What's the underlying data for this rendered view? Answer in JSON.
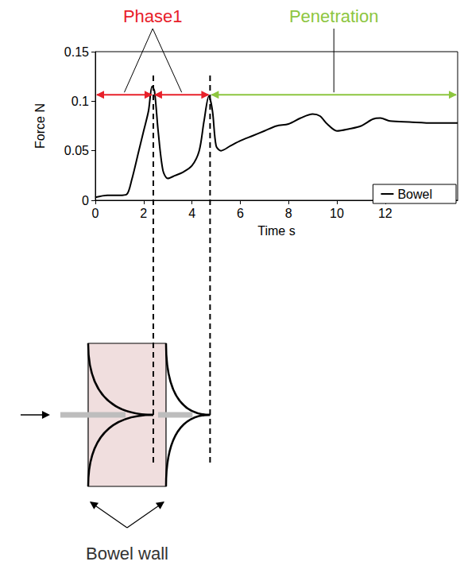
{
  "chart_data": {
    "type": "line",
    "x_label": "Time s",
    "y_label": "Force N",
    "xlim": [
      0,
      15
    ],
    "xticks": [
      0,
      2,
      4,
      6,
      8,
      10,
      12
    ],
    "ylim": [
      0,
      0.15
    ],
    "yticks": [
      0,
      0.05,
      0.1,
      0.15
    ],
    "grid": false,
    "legend": "lower right",
    "x": [
      0,
      0.5,
      1.0,
      1.3,
      1.5,
      1.8,
      2.0,
      2.2,
      2.35,
      2.45,
      2.6,
      2.8,
      3.0,
      3.3,
      3.6,
      4.0,
      4.3,
      4.5,
      4.7,
      4.85,
      5.0,
      5.2,
      5.6,
      6.0,
      6.5,
      7.0,
      7.5,
      8.0,
      8.5,
      9.0,
      9.3,
      9.6,
      10.0,
      10.5,
      11.0,
      11.5,
      11.8,
      12.2,
      13.0,
      14.0,
      15.0
    ],
    "series": [
      {
        "name": "Bowel",
        "color": "#000000",
        "values": [
          0.003,
          0.005,
          0.005,
          0.006,
          0.02,
          0.05,
          0.07,
          0.09,
          0.115,
          0.11,
          0.07,
          0.03,
          0.022,
          0.025,
          0.028,
          0.035,
          0.05,
          0.08,
          0.105,
          0.09,
          0.055,
          0.05,
          0.055,
          0.06,
          0.065,
          0.07,
          0.075,
          0.077,
          0.083,
          0.087,
          0.085,
          0.077,
          0.07,
          0.072,
          0.075,
          0.082,
          0.083,
          0.08,
          0.079,
          0.078,
          0.078
        ]
      }
    ],
    "phases": [
      {
        "label": "Phase1",
        "color": "#e8202a",
        "start": 0,
        "end": 4.75
      },
      {
        "label": "Penetration",
        "color": "#8dc63f",
        "start": 4.75,
        "end": 15
      }
    ],
    "events": [
      2.4,
      4.75
    ],
    "diagram": {
      "label": "Bowel wall"
    }
  }
}
